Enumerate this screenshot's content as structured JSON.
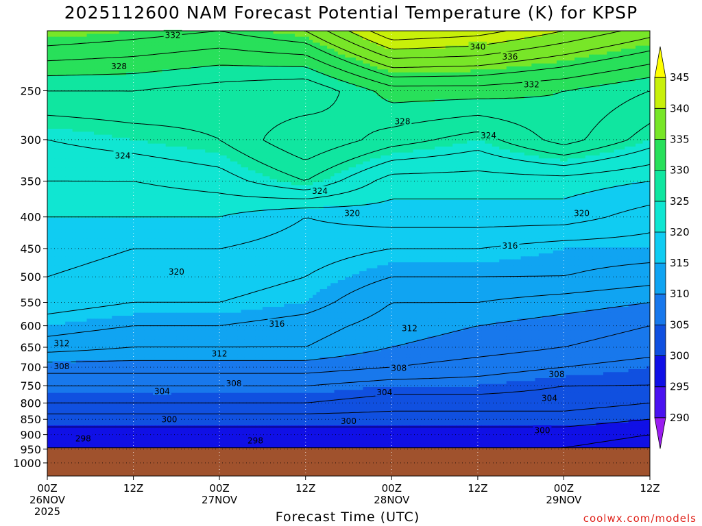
{
  "chart_data": {
    "type": "heatmap",
    "title": "2025112600 NAM Forecast Potential Temperature (K) for KPSP",
    "xlabel": "Forecast Time (UTC)",
    "ylabel": "",
    "y_axis": {
      "scale": "pressure",
      "unit": "hPa",
      "inverted": true,
      "range": [
        1050,
        200
      ],
      "ticks": [
        250,
        300,
        350,
        400,
        450,
        500,
        550,
        600,
        650,
        700,
        750,
        800,
        850,
        900,
        950,
        1000
      ]
    },
    "x_axis": {
      "range_hours": [
        0,
        84
      ],
      "ticks": [
        {
          "hour": 0,
          "lines": [
            "00Z",
            "26NOV",
            "2025"
          ]
        },
        {
          "hour": 12,
          "lines": [
            "12Z"
          ]
        },
        {
          "hour": 24,
          "lines": [
            "00Z",
            "27NOV"
          ]
        },
        {
          "hour": 36,
          "lines": [
            "12Z"
          ]
        },
        {
          "hour": 48,
          "lines": [
            "00Z",
            "28NOV"
          ]
        },
        {
          "hour": 60,
          "lines": [
            "12Z"
          ]
        },
        {
          "hour": 72,
          "lines": [
            "00Z",
            "29NOV"
          ]
        },
        {
          "hour": 84,
          "lines": [
            "12Z"
          ]
        }
      ]
    },
    "grid": true,
    "colorbar": {
      "ticks": [
        290,
        295,
        300,
        305,
        310,
        315,
        320,
        325,
        330,
        335,
        340,
        345
      ],
      "colors": [
        "#9A1DF0",
        "#4A12F0",
        "#1010E6",
        "#1050E0",
        "#1878EC",
        "#10A4F2",
        "#10CCF2",
        "#10E6D2",
        "#10E6A0",
        "#28E05A",
        "#78E628",
        "#C8F00A",
        "#FFFF00"
      ]
    },
    "surface": {
      "pressure_hPa": 945,
      "color": "#A0522D"
    },
    "levels_hPa": [
      200,
      250,
      300,
      350,
      400,
      450,
      500,
      550,
      600,
      650,
      700,
      750,
      800,
      850,
      900,
      945
    ],
    "times_hours": [
      0,
      12,
      24,
      36,
      48,
      60,
      72,
      84
    ],
    "theta_K": [
      [
        336,
        335,
        334,
        336,
        344,
        343,
        340,
        337
      ],
      [
        328,
        328,
        327,
        326,
        331,
        331,
        330,
        328
      ],
      [
        324,
        325,
        326,
        330,
        327,
        325,
        329,
        325
      ],
      [
        322,
        322,
        323,
        326,
        321,
        321,
        321,
        320
      ],
      [
        320,
        320,
        320,
        318,
        319,
        319,
        319,
        317
      ],
      [
        319,
        318,
        318,
        317,
        316,
        316,
        315,
        315
      ],
      [
        318,
        317,
        317,
        316,
        314,
        314,
        314,
        313
      ],
      [
        317,
        316,
        316,
        315,
        312,
        312,
        311,
        310
      ],
      [
        315,
        314,
        314,
        313,
        311,
        310,
        309,
        308
      ],
      [
        313,
        312,
        312,
        312,
        310,
        309,
        308,
        307
      ],
      [
        309,
        309,
        309,
        309,
        308,
        307,
        306,
        305
      ],
      [
        306,
        306,
        306,
        306,
        305,
        305,
        304,
        304
      ],
      [
        304,
        304,
        304,
        304,
        303,
        303,
        303,
        302
      ],
      [
        301,
        301,
        301,
        301,
        301,
        301,
        301,
        300
      ],
      [
        299,
        299,
        299,
        299,
        299,
        299,
        299,
        298
      ],
      [
        298,
        298,
        298,
        298,
        298,
        298,
        298,
        297
      ]
    ],
    "contour_interval_K": 2,
    "contour_labels": [
      {
        "value": "332",
        "hour": 17.5,
        "p": 203
      },
      {
        "value": "328",
        "hour": 10.0,
        "p": 228
      },
      {
        "value": "340",
        "hour": 60.0,
        "p": 212
      },
      {
        "value": "336",
        "hour": 64.5,
        "p": 220
      },
      {
        "value": "332",
        "hour": 67.5,
        "p": 244
      },
      {
        "value": "328",
        "hour": 49.5,
        "p": 280
      },
      {
        "value": "324",
        "hour": 61.5,
        "p": 295
      },
      {
        "value": "324",
        "hour": 10.5,
        "p": 318
      },
      {
        "value": "324",
        "hour": 38.0,
        "p": 363
      },
      {
        "value": "320",
        "hour": 42.5,
        "p": 394
      },
      {
        "value": "320",
        "hour": 74.5,
        "p": 394
      },
      {
        "value": "316",
        "hour": 64.5,
        "p": 445
      },
      {
        "value": "320",
        "hour": 18.0,
        "p": 490
      },
      {
        "value": "316",
        "hour": 32.0,
        "p": 595
      },
      {
        "value": "312",
        "hour": 50.5,
        "p": 605
      },
      {
        "value": "312",
        "hour": 2.0,
        "p": 640
      },
      {
        "value": "312",
        "hour": 24.0,
        "p": 665
      },
      {
        "value": "308",
        "hour": 2.0,
        "p": 697
      },
      {
        "value": "308",
        "hour": 49.0,
        "p": 702
      },
      {
        "value": "308",
        "hour": 71.0,
        "p": 718
      },
      {
        "value": "308",
        "hour": 26.0,
        "p": 743
      },
      {
        "value": "304",
        "hour": 16.0,
        "p": 765
      },
      {
        "value": "304",
        "hour": 47.0,
        "p": 768
      },
      {
        "value": "304",
        "hour": 70.0,
        "p": 785
      },
      {
        "value": "300",
        "hour": 17.0,
        "p": 850
      },
      {
        "value": "300",
        "hour": 42.0,
        "p": 855
      },
      {
        "value": "300",
        "hour": 69.0,
        "p": 885
      },
      {
        "value": "298",
        "hour": 5.0,
        "p": 912
      },
      {
        "value": "298",
        "hour": 29.0,
        "p": 920
      }
    ]
  },
  "credit": "coolwx.com/models"
}
